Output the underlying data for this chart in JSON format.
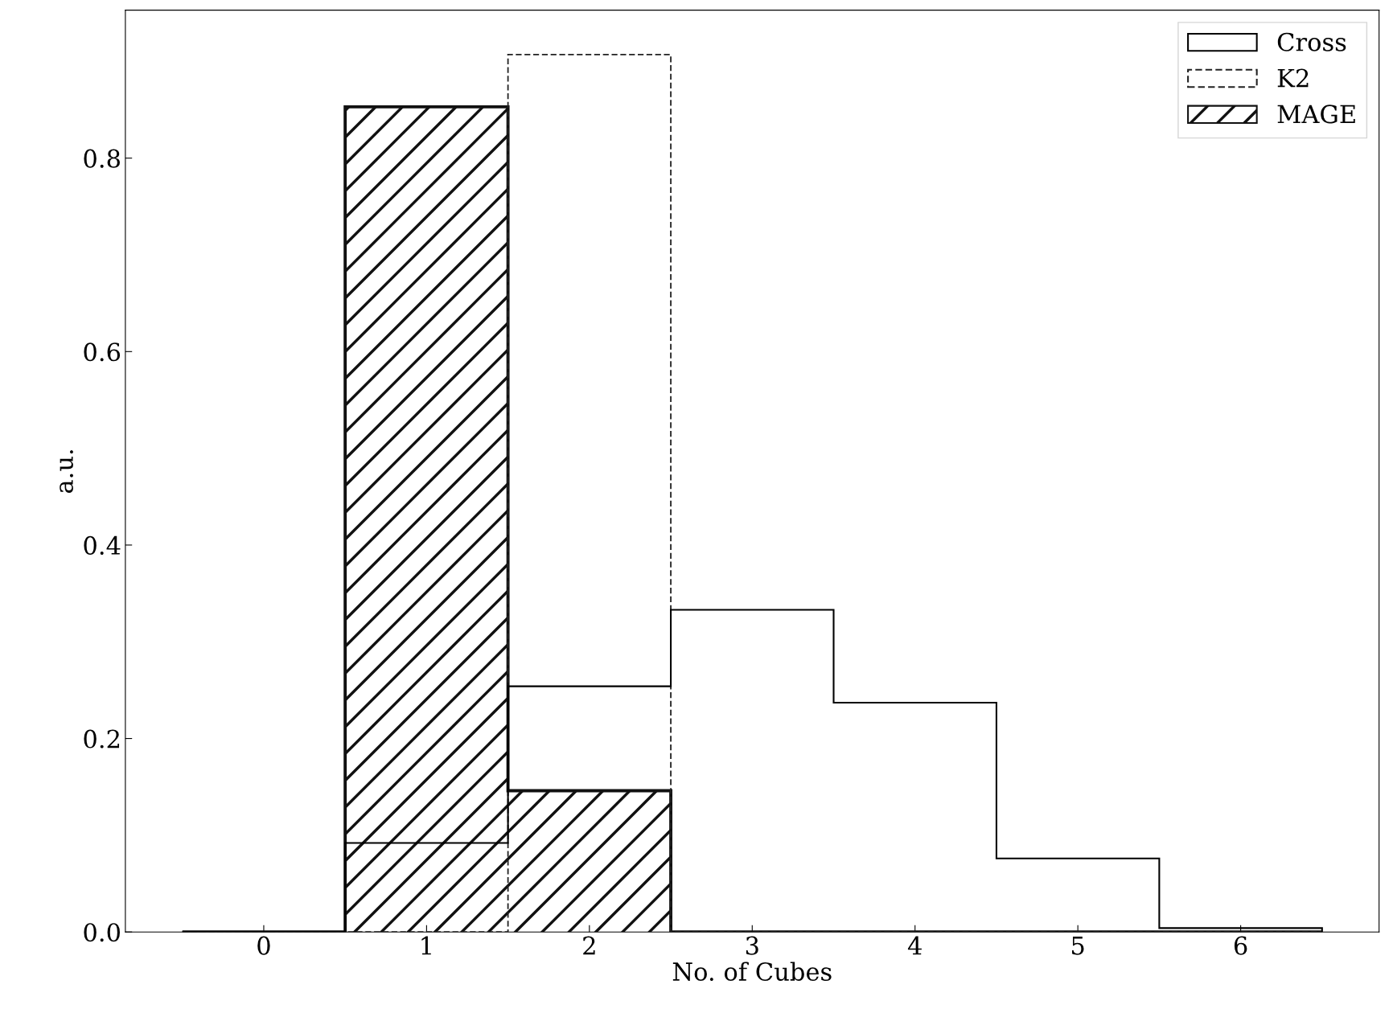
{
  "chart_data": {
    "type": "histogram",
    "xlabel": "No. of Cubes",
    "ylabel": "a.u.",
    "bins": [
      -0.5,
      0.5,
      1.5,
      2.5,
      3.5,
      4.5,
      5.5,
      6.5
    ],
    "series": [
      {
        "name": "Cross",
        "color": "#000000",
        "line_style": "solid",
        "values": [
          0,
          0.092,
          0.254,
          0.333,
          0.237,
          0.076,
          0.004
        ]
      },
      {
        "name": "K2",
        "color": "#222222",
        "line_style": "dashed",
        "values": [
          0,
          0,
          0.907,
          0,
          0,
          0,
          0
        ]
      },
      {
        "name": "MAGE",
        "color": "#111111",
        "line_style": "solid",
        "values": [
          0,
          0.853,
          0.146,
          0,
          0,
          0,
          0
        ]
      }
    ],
    "xlim": [
      -0.85,
      6.85
    ],
    "ylim": [
      0,
      0.953
    ],
    "xticks": [
      0,
      1,
      2,
      3,
      4,
      5,
      6
    ],
    "yticks": [
      {
        "value": 0,
        "label": "0.0"
      },
      {
        "value": 0.2,
        "label": "0.2"
      },
      {
        "value": 0.4,
        "label": "0.4"
      },
      {
        "value": 0.6,
        "label": "0.6"
      },
      {
        "value": 0.8,
        "label": "0.8"
      }
    ],
    "legend": "top right",
    "grid": false
  }
}
